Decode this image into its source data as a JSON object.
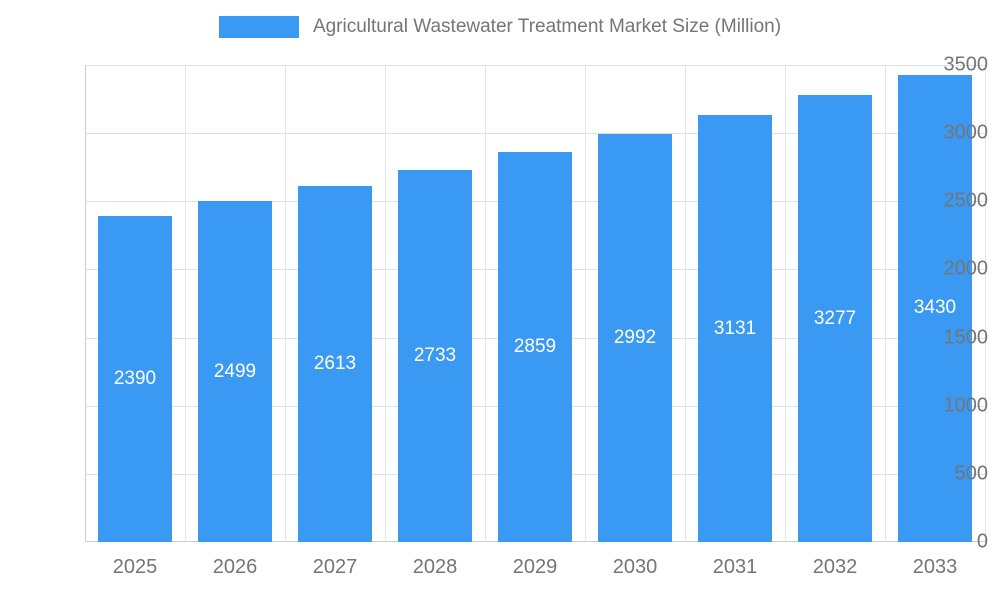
{
  "chart_data": {
    "type": "bar",
    "title": "Agricultural Wastewater Treatment Market Size (Million)",
    "categories": [
      "2025",
      "2026",
      "2027",
      "2028",
      "2029",
      "2030",
      "2031",
      "2032",
      "2033"
    ],
    "values": [
      2390,
      2499,
      2613,
      2733,
      2859,
      2992,
      3131,
      3277,
      3430
    ],
    "ylim": [
      0,
      3500
    ],
    "yticks": [
      0,
      500,
      1000,
      1500,
      2000,
      2500,
      3000,
      3500
    ],
    "xlabel": "",
    "ylabel": "",
    "grid": true,
    "legend_position": "top",
    "value_labels": "inside-middle",
    "colors": {
      "bar": "#3a99f2",
      "value_label": "#ffffff",
      "axis_text": "#757575",
      "grid_line": "#e0e0e0",
      "axis_line": "#cccccc",
      "background": "#ffffff"
    }
  }
}
